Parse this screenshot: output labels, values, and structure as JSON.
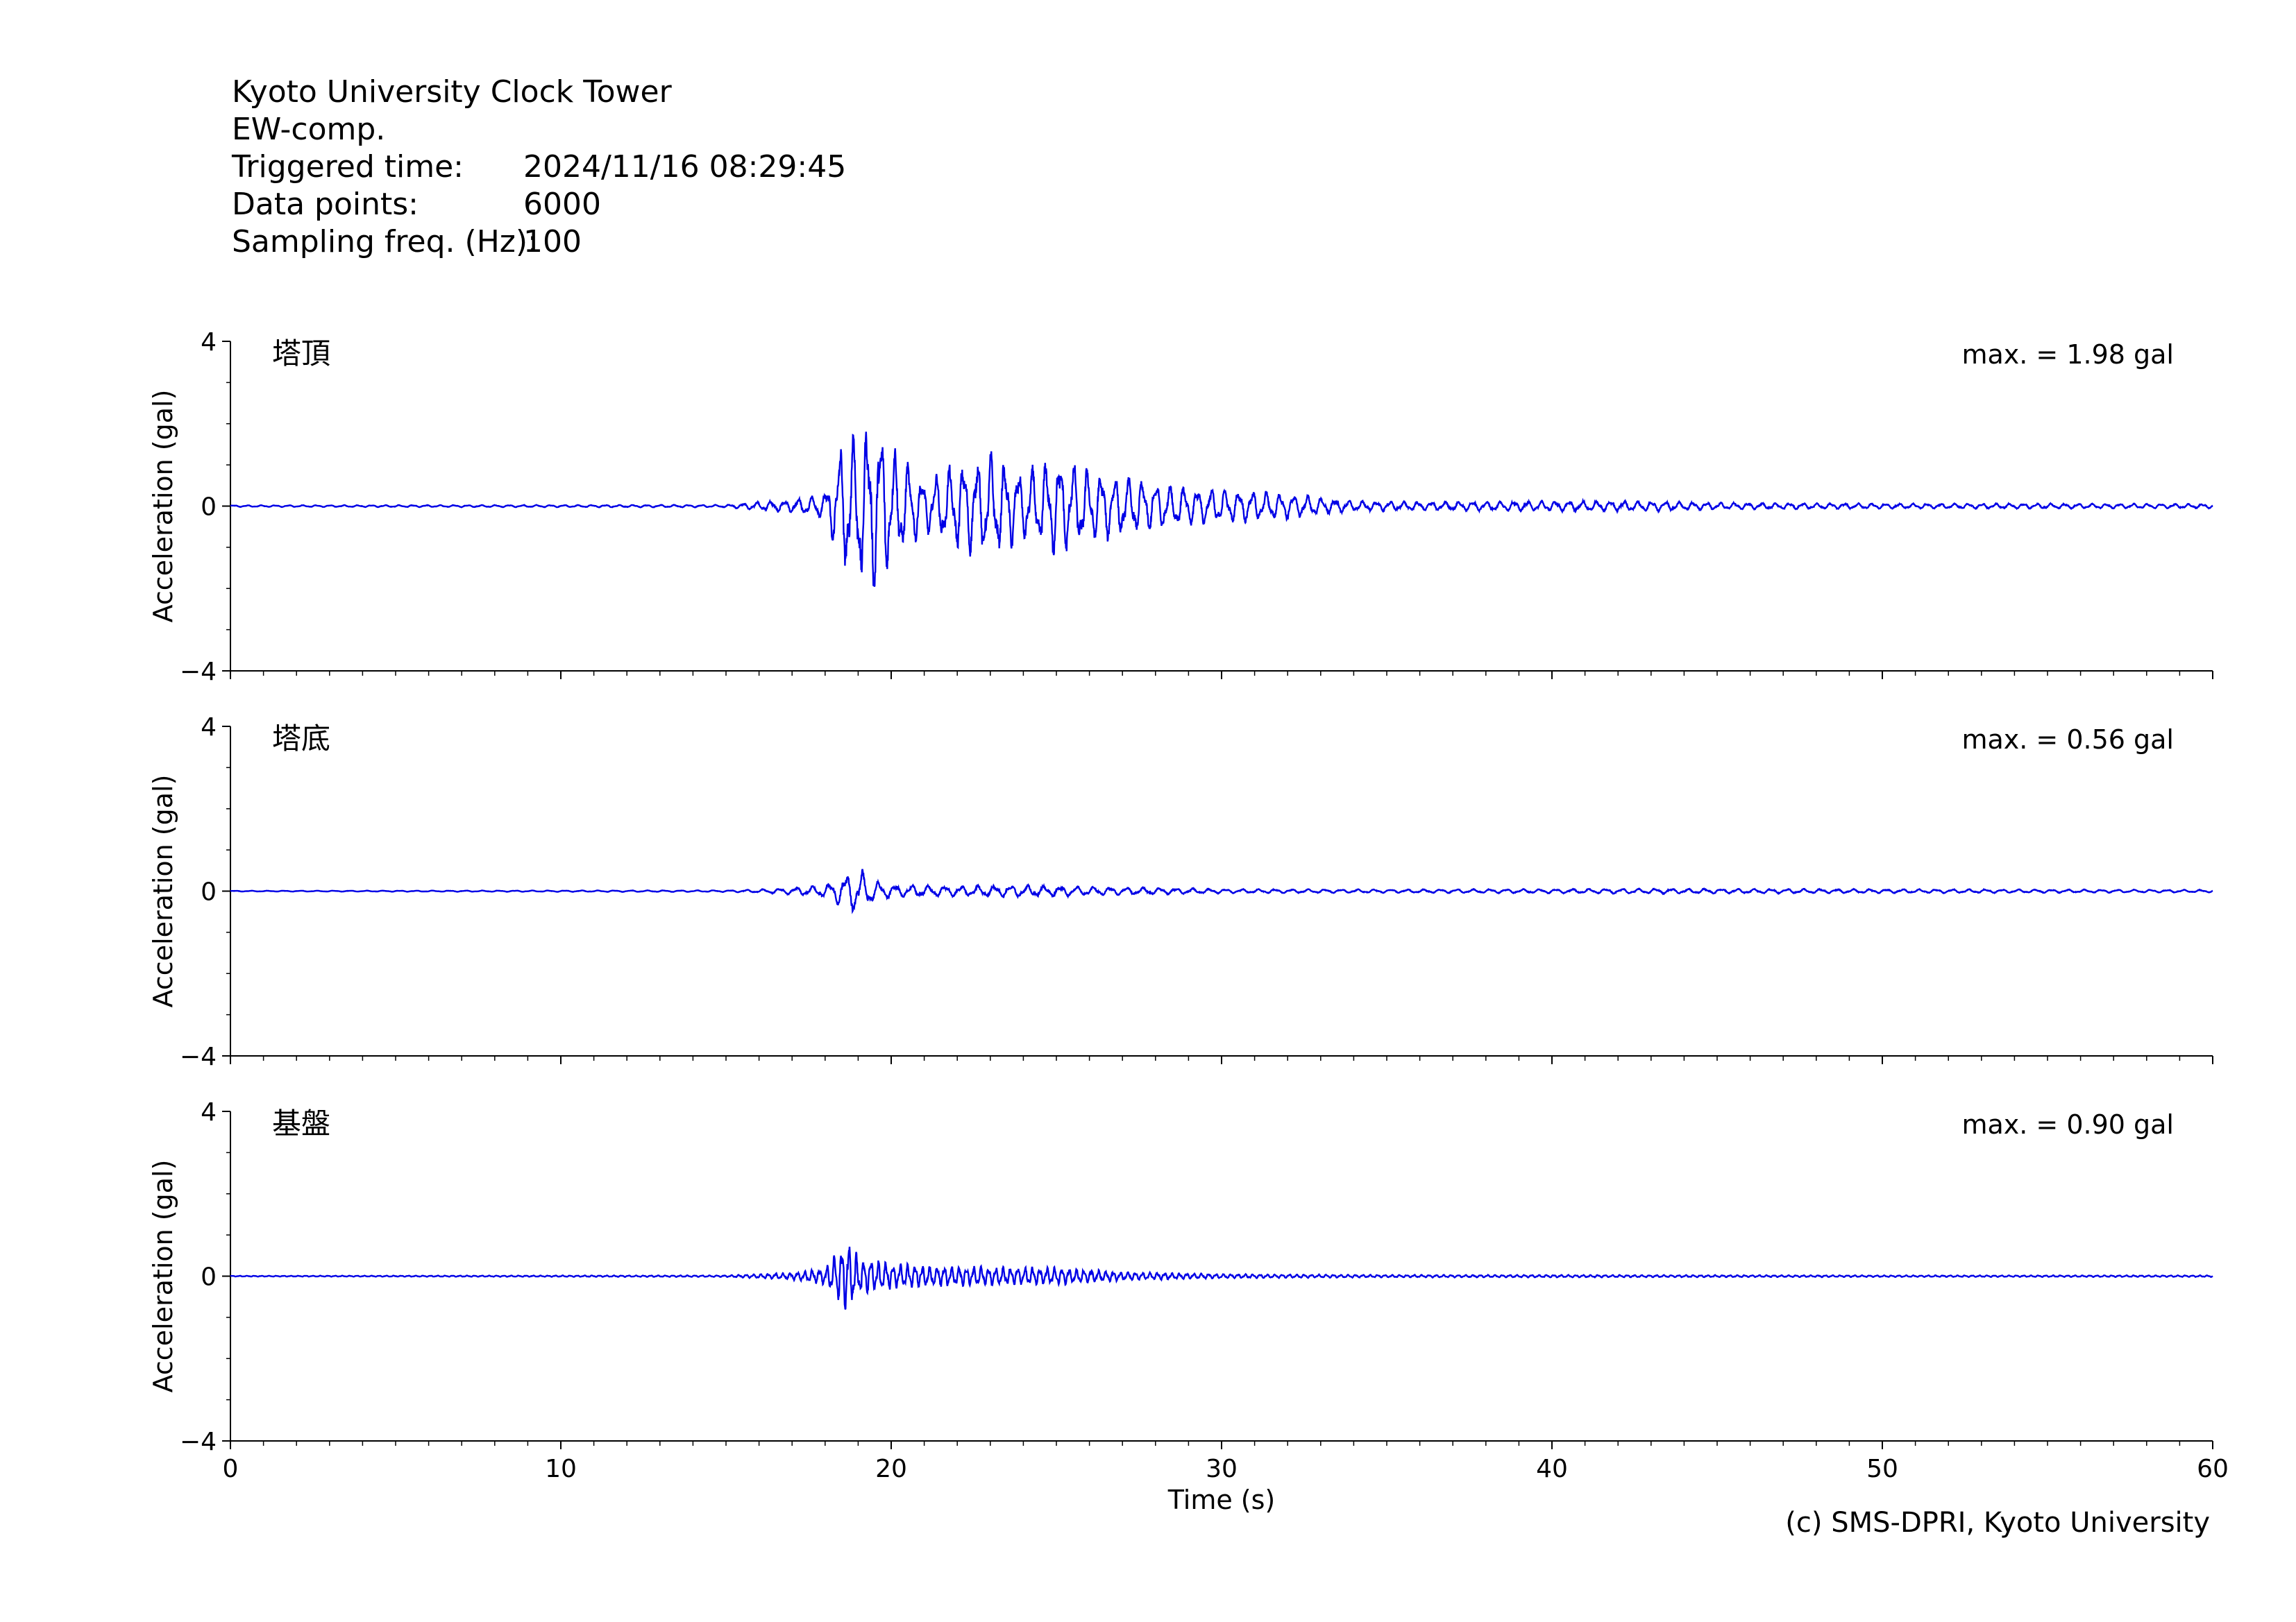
{
  "header": {
    "station": "Kyoto University Clock Tower",
    "component": "EW-comp.",
    "triggered_label": "Triggered time:",
    "triggered_value": "2024/11/16 08:29:45",
    "points_label": "Data points:",
    "points_value": "6000",
    "freq_label": "Sampling freq. (Hz):",
    "freq_value": "100"
  },
  "credit": "(c) SMS-DPRI, Kyoto University",
  "colors": {
    "trace": "#0000e6",
    "axis": "#000000"
  },
  "chart_data": [
    {
      "type": "line",
      "panel_label": "塔頂",
      "max_text": "max. = 1.98 gal",
      "ylabel": "Acceleration (gal)",
      "xlabel": "",
      "xlim": [
        0,
        60
      ],
      "ylim": [
        -4,
        4
      ],
      "yticks": [
        "4",
        "0",
        "−4"
      ],
      "xticks": [
        "0",
        "10",
        "20",
        "30",
        "40",
        "50",
        "60"
      ],
      "series": [
        {
          "values_sampled": "waveform",
          "peak_abs": 1.98
        }
      ],
      "envelope": [
        [
          0,
          0.02
        ],
        [
          15,
          0.03
        ],
        [
          16,
          0.1
        ],
        [
          17,
          0.15
        ],
        [
          18,
          0.3
        ],
        [
          18.5,
          1.5
        ],
        [
          19,
          1.8
        ],
        [
          19.6,
          1.98
        ],
        [
          20,
          1.4
        ],
        [
          21,
          0.6
        ],
        [
          22,
          1.0
        ],
        [
          23,
          1.2
        ],
        [
          24,
          0.8
        ],
        [
          25,
          1.15
        ],
        [
          26,
          0.85
        ],
        [
          27,
          0.7
        ],
        [
          28,
          0.55
        ],
        [
          29,
          0.45
        ],
        [
          30,
          0.4
        ],
        [
          31,
          0.35
        ],
        [
          32,
          0.3
        ],
        [
          33,
          0.2
        ],
        [
          34,
          0.12
        ],
        [
          36,
          0.1
        ],
        [
          40,
          0.12
        ],
        [
          43,
          0.12
        ],
        [
          45,
          0.08
        ],
        [
          50,
          0.06
        ],
        [
          55,
          0.06
        ],
        [
          60,
          0.05
        ]
      ],
      "frequency_hz": 2.4
    },
    {
      "type": "line",
      "panel_label": "塔底",
      "max_text": "max. = 0.56 gal",
      "ylabel": "Acceleration (gal)",
      "xlabel": "",
      "xlim": [
        0,
        60
      ],
      "ylim": [
        -4,
        4
      ],
      "yticks": [
        "4",
        "0",
        "−4"
      ],
      "xticks": [
        "0",
        "10",
        "20",
        "30",
        "40",
        "50",
        "60"
      ],
      "series": [
        {
          "values_sampled": "waveform",
          "peak_abs": 0.56
        }
      ],
      "envelope": [
        [
          0,
          0.01
        ],
        [
          15,
          0.02
        ],
        [
          16,
          0.04
        ],
        [
          17,
          0.08
        ],
        [
          18,
          0.15
        ],
        [
          18.5,
          0.35
        ],
        [
          19,
          0.56
        ],
        [
          19.5,
          0.25
        ],
        [
          20,
          0.15
        ],
        [
          22,
          0.12
        ],
        [
          24,
          0.14
        ],
        [
          26,
          0.1
        ],
        [
          28,
          0.08
        ],
        [
          30,
          0.05
        ],
        [
          35,
          0.04
        ],
        [
          40,
          0.05
        ],
        [
          43,
          0.06
        ],
        [
          48,
          0.05
        ],
        [
          55,
          0.04
        ],
        [
          60,
          0.03
        ]
      ],
      "frequency_hz": 2.0
    },
    {
      "type": "line",
      "panel_label": "基盤",
      "max_text": "max. = 0.90 gal",
      "ylabel": "Acceleration (gal)",
      "xlabel": "Time (s)",
      "xlim": [
        0,
        60
      ],
      "ylim": [
        -4,
        4
      ],
      "yticks": [
        "4",
        "0",
        "−4"
      ],
      "xticks": [
        "0",
        "10",
        "20",
        "30",
        "40",
        "50",
        "60"
      ],
      "series": [
        {
          "values_sampled": "waveform",
          "peak_abs": 0.9
        }
      ],
      "envelope": [
        [
          0,
          0.01
        ],
        [
          15,
          0.02
        ],
        [
          16,
          0.05
        ],
        [
          17,
          0.08
        ],
        [
          18,
          0.2
        ],
        [
          18.4,
          0.6
        ],
        [
          18.7,
          0.9
        ],
        [
          19,
          0.45
        ],
        [
          20,
          0.3
        ],
        [
          21,
          0.25
        ],
        [
          23,
          0.22
        ],
        [
          25,
          0.2
        ],
        [
          27,
          0.1
        ],
        [
          30,
          0.05
        ],
        [
          35,
          0.03
        ],
        [
          40,
          0.03
        ],
        [
          50,
          0.02
        ],
        [
          60,
          0.02
        ]
      ],
      "frequency_hz": 4.5
    }
  ]
}
